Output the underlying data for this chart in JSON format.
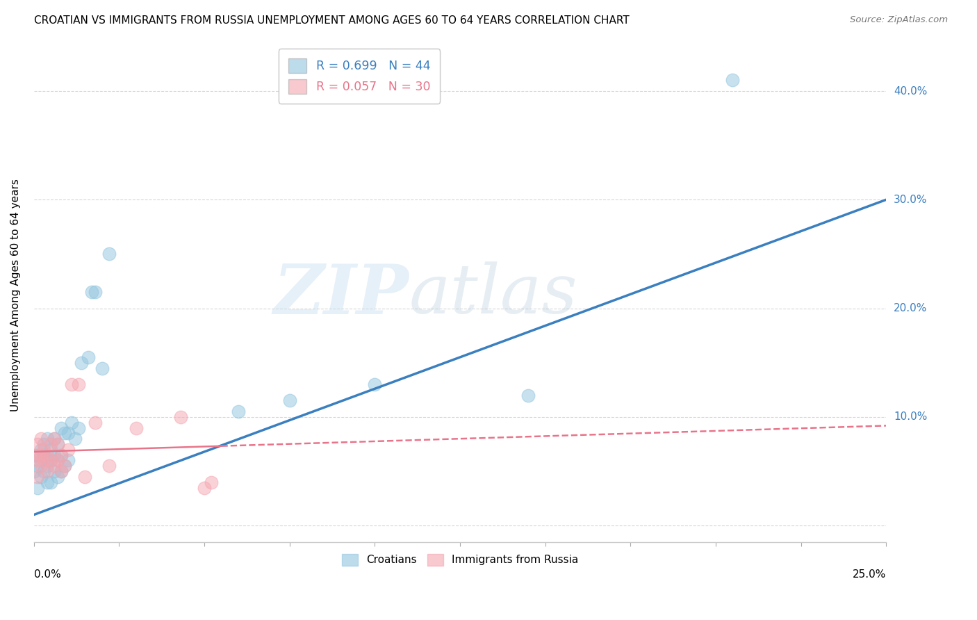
{
  "title": "CROATIAN VS IMMIGRANTS FROM RUSSIA UNEMPLOYMENT AMONG AGES 60 TO 64 YEARS CORRELATION CHART",
  "source": "Source: ZipAtlas.com",
  "ylabel": "Unemployment Among Ages 60 to 64 years",
  "xlim": [
    0,
    0.25
  ],
  "ylim": [
    -0.015,
    0.44
  ],
  "watermark_zip": "ZIP",
  "watermark_atlas": "atlas",
  "legend_line1": "R = 0.699   N = 44",
  "legend_line2": "R = 0.057   N = 30",
  "croatian_color": "#92c5de",
  "russia_color": "#f4a6b0",
  "croatian_line_color": "#3a7fbf",
  "russia_line_color": "#e8748a",
  "background_color": "#ffffff",
  "grid_color": "#cccccc",
  "ytick_vals": [
    0.0,
    0.1,
    0.2,
    0.3,
    0.4
  ],
  "ytick_labels": [
    "",
    "10.0%",
    "20.0%",
    "30.0%",
    "40.0%"
  ],
  "croatians_x": [
    0.0,
    0.001,
    0.001,
    0.001,
    0.002,
    0.002,
    0.002,
    0.003,
    0.003,
    0.003,
    0.004,
    0.004,
    0.004,
    0.004,
    0.005,
    0.005,
    0.005,
    0.006,
    0.006,
    0.006,
    0.007,
    0.007,
    0.007,
    0.008,
    0.008,
    0.008,
    0.009,
    0.009,
    0.01,
    0.01,
    0.011,
    0.012,
    0.013,
    0.014,
    0.016,
    0.017,
    0.018,
    0.02,
    0.022,
    0.06,
    0.075,
    0.1,
    0.145,
    0.205
  ],
  "croatians_y": [
    0.05,
    0.035,
    0.055,
    0.065,
    0.045,
    0.06,
    0.07,
    0.05,
    0.065,
    0.075,
    0.04,
    0.055,
    0.06,
    0.08,
    0.04,
    0.06,
    0.07,
    0.05,
    0.065,
    0.08,
    0.045,
    0.06,
    0.075,
    0.05,
    0.065,
    0.09,
    0.055,
    0.085,
    0.06,
    0.085,
    0.095,
    0.08,
    0.09,
    0.15,
    0.155,
    0.215,
    0.215,
    0.145,
    0.25,
    0.105,
    0.115,
    0.13,
    0.12,
    0.41
  ],
  "russia_x": [
    0.0,
    0.001,
    0.001,
    0.001,
    0.002,
    0.002,
    0.002,
    0.003,
    0.003,
    0.004,
    0.004,
    0.005,
    0.005,
    0.006,
    0.006,
    0.007,
    0.007,
    0.008,
    0.008,
    0.009,
    0.01,
    0.011,
    0.013,
    0.015,
    0.018,
    0.022,
    0.03,
    0.043,
    0.05,
    0.052
  ],
  "russia_y": [
    0.065,
    0.045,
    0.06,
    0.075,
    0.055,
    0.065,
    0.08,
    0.06,
    0.07,
    0.05,
    0.065,
    0.06,
    0.075,
    0.055,
    0.08,
    0.06,
    0.075,
    0.05,
    0.065,
    0.055,
    0.07,
    0.13,
    0.13,
    0.045,
    0.095,
    0.055,
    0.09,
    0.1,
    0.035,
    0.04
  ]
}
